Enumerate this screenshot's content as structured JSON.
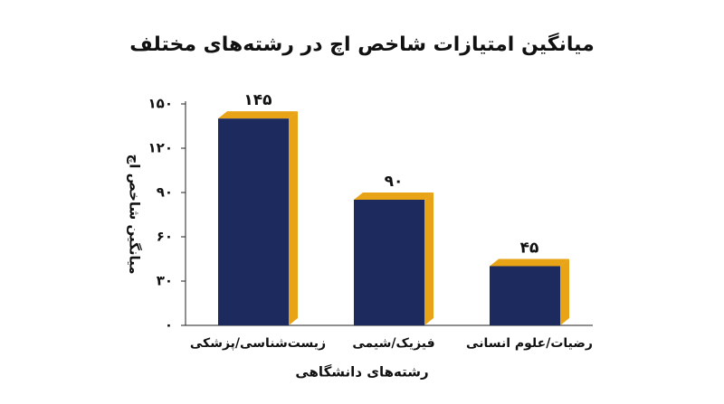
{
  "chart_data": {
    "type": "bar",
    "title": "میانگین امتیازات شاخص اچ در رشته‌های مختلف",
    "x_label": "رشته‌های دانشگاهی",
    "y_label": "میانگین شاخص اچ",
    "categories": [
      "زیست‌شناسی/پزشکی",
      "فیزیک/شیمی",
      "رضیات/علوم انسانی"
    ],
    "values": [
      145,
      90,
      45
    ],
    "value_labels": [
      "۱۴۵",
      "۹۰",
      "۴۵"
    ],
    "color": "#1c2a5e",
    "edge_color": "#e8a317",
    "ylim": [
      0,
      150
    ],
    "yticks": [
      {
        "value": 0,
        "label": "۰"
      },
      {
        "value": 30,
        "label": "۳۰"
      },
      {
        "value": 60,
        "label": "۶۰"
      },
      {
        "value": 90,
        "label": "۹۰"
      },
      {
        "value": 120,
        "label": "۱۲۰"
      },
      {
        "value": 150,
        "label": "۱۵۰"
      }
    ],
    "grid": false
  }
}
